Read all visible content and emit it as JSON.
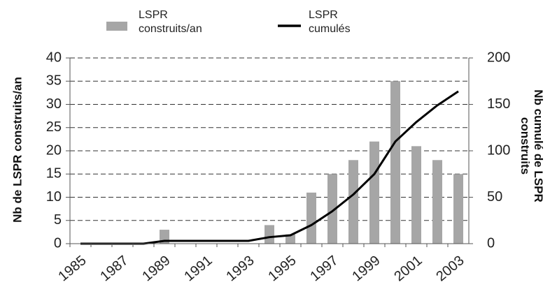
{
  "chart_data": {
    "type": "bar",
    "categories": [
      "1985",
      null,
      "1987",
      null,
      "1989",
      null,
      "1991",
      null,
      "1993",
      null,
      "1995",
      null,
      "1997",
      null,
      "1999",
      null,
      "2001",
      null,
      "2003"
    ],
    "series": [
      {
        "name": "LSPR construits/an",
        "type": "bar",
        "color": "#a6a6a6",
        "values": [
          0,
          0,
          0,
          0,
          3,
          0,
          0,
          0,
          0,
          4,
          2,
          11,
          15,
          18,
          22,
          35,
          21,
          18,
          15
        ]
      },
      {
        "name": "LSPR cumulés",
        "type": "line",
        "axis": "y2",
        "color": "#000000",
        "values": [
          0,
          0,
          0,
          0,
          3,
          3,
          3,
          3,
          3,
          7,
          9,
          20,
          35,
          53,
          75,
          110,
          131,
          149,
          164
        ]
      }
    ],
    "ylabel": "Nb de LSPR construits/an",
    "y2label": "Nb cumulé de LSPR construits",
    "ylim": [
      0,
      40
    ],
    "yticks": [
      0,
      5,
      10,
      15,
      20,
      25,
      30,
      35,
      40
    ],
    "y2lim": [
      0,
      200
    ],
    "y2ticks": [
      0,
      50,
      100,
      150,
      200
    ],
    "grid": true,
    "legend": "top"
  }
}
